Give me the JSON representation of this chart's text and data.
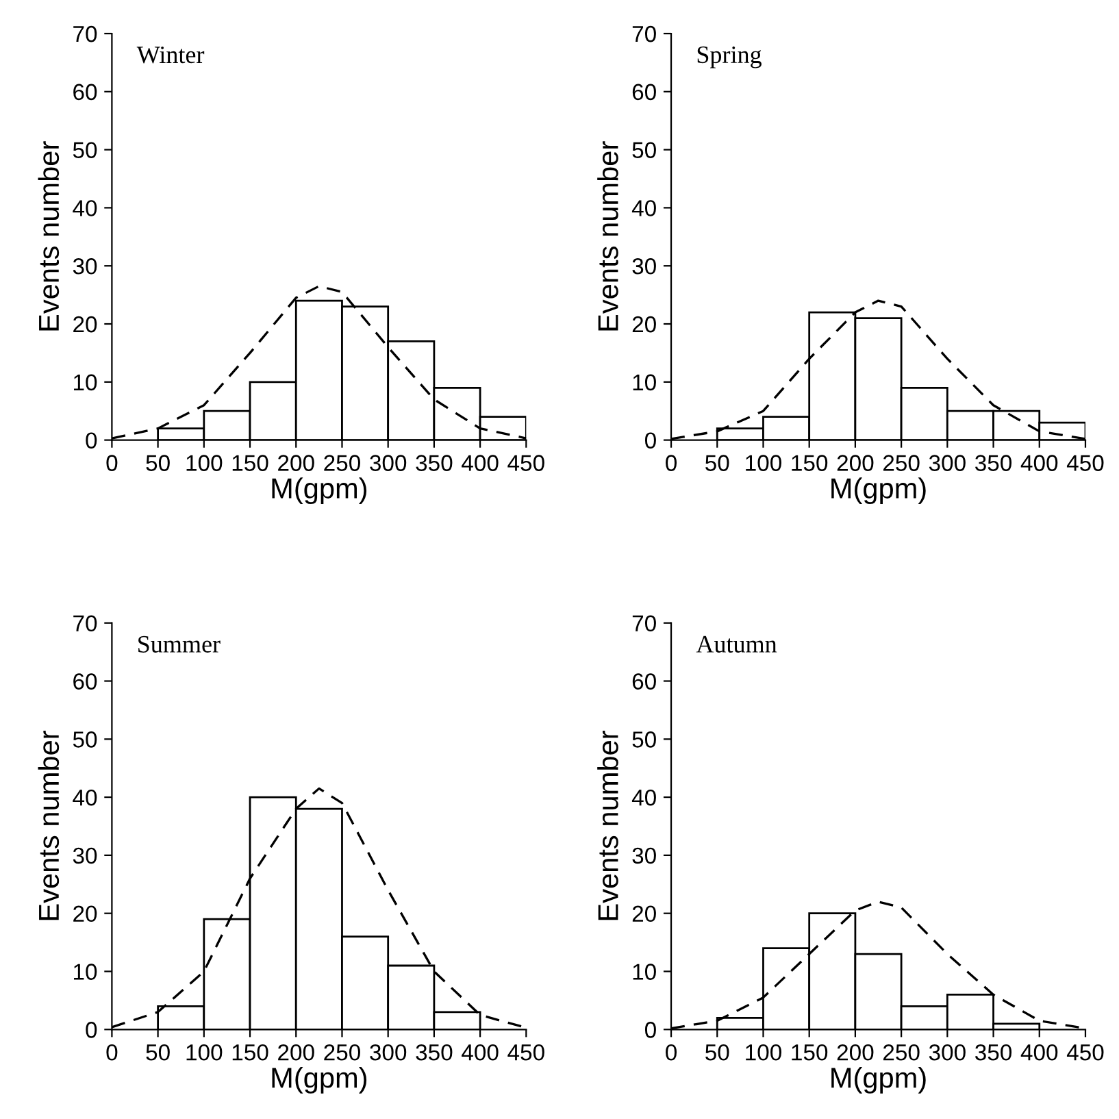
{
  "chart_data": [
    {
      "type": "histogram",
      "title": "Winter",
      "xlabel": "M(gpm)",
      "ylabel": "Events number",
      "bins": [
        0,
        50,
        100,
        150,
        200,
        250,
        300,
        350,
        400,
        450
      ],
      "values": [
        0,
        2,
        5,
        10,
        24,
        23,
        17,
        9,
        4
      ],
      "color": "#ffffff",
      "xlim": [
        0,
        450
      ],
      "xticks": [
        0,
        50,
        100,
        150,
        200,
        250,
        300,
        350,
        400,
        450
      ],
      "ylim": [
        0,
        70
      ],
      "yticks": [
        0,
        10,
        20,
        30,
        40,
        50,
        60,
        70
      ],
      "grid": false,
      "series": [
        {
          "type": "line",
          "line_style": "dashed",
          "color": "#000000",
          "x": [
            0,
            50,
            100,
            150,
            200,
            225,
            250,
            300,
            350,
            400,
            450
          ],
          "values": [
            0.3,
            2,
            6,
            15,
            24.5,
            26.5,
            25.5,
            16,
            7,
            2,
            0.3
          ]
        }
      ]
    },
    {
      "type": "histogram",
      "title": "Spring",
      "xlabel": "M(gpm)",
      "ylabel": "Events number",
      "bins": [
        0,
        50,
        100,
        150,
        200,
        250,
        300,
        350,
        400,
        450
      ],
      "values": [
        0,
        2,
        4,
        22,
        21,
        9,
        5,
        5,
        3
      ],
      "color": "#ffffff",
      "xlim": [
        0,
        450
      ],
      "xticks": [
        0,
        50,
        100,
        150,
        200,
        250,
        300,
        350,
        400,
        450
      ],
      "ylim": [
        0,
        70
      ],
      "yticks": [
        0,
        10,
        20,
        30,
        40,
        50,
        60,
        70
      ],
      "grid": false,
      "series": [
        {
          "type": "line",
          "line_style": "dashed",
          "color": "#000000",
          "x": [
            0,
            50,
            100,
            150,
            200,
            225,
            250,
            300,
            350,
            400,
            450
          ],
          "values": [
            0.2,
            1.5,
            5,
            14,
            22,
            24,
            23,
            14,
            6,
            1.5,
            0.2
          ]
        }
      ]
    },
    {
      "type": "histogram",
      "title": "Summer",
      "xlabel": "M(gpm)",
      "ylabel": "Events number",
      "bins": [
        0,
        50,
        100,
        150,
        200,
        250,
        300,
        350,
        400,
        450
      ],
      "values": [
        0,
        4,
        19,
        40,
        38,
        16,
        11,
        3,
        0
      ],
      "color": "#ffffff",
      "xlim": [
        0,
        450
      ],
      "xticks": [
        0,
        50,
        100,
        150,
        200,
        250,
        300,
        350,
        400,
        450
      ],
      "ylim": [
        0,
        70
      ],
      "yticks": [
        0,
        10,
        20,
        30,
        40,
        50,
        60,
        70
      ],
      "grid": false,
      "series": [
        {
          "type": "line",
          "line_style": "dashed",
          "color": "#000000",
          "x": [
            0,
            50,
            100,
            150,
            200,
            225,
            250,
            300,
            350,
            400,
            450
          ],
          "values": [
            0.4,
            3,
            10,
            26,
            38,
            41.5,
            39,
            24,
            10,
            2.5,
            0.3
          ]
        }
      ]
    },
    {
      "type": "histogram",
      "title": "Autumn",
      "xlabel": "M(gpm)",
      "ylabel": "Events number",
      "bins": [
        0,
        50,
        100,
        150,
        200,
        250,
        300,
        350,
        400,
        450
      ],
      "values": [
        0,
        2,
        14,
        20,
        13,
        4,
        6,
        1,
        0
      ],
      "color": "#ffffff",
      "xlim": [
        0,
        450
      ],
      "xticks": [
        0,
        50,
        100,
        150,
        200,
        250,
        300,
        350,
        400,
        450
      ],
      "ylim": [
        0,
        70
      ],
      "yticks": [
        0,
        10,
        20,
        30,
        40,
        50,
        60,
        70
      ],
      "grid": false,
      "series": [
        {
          "type": "line",
          "line_style": "dashed",
          "color": "#000000",
          "x": [
            0,
            50,
            100,
            150,
            200,
            225,
            250,
            300,
            350,
            400,
            450
          ],
          "values": [
            0.2,
            1.5,
            5.5,
            13,
            20.5,
            22,
            21,
            13,
            6,
            1.5,
            0.2
          ]
        }
      ]
    }
  ]
}
